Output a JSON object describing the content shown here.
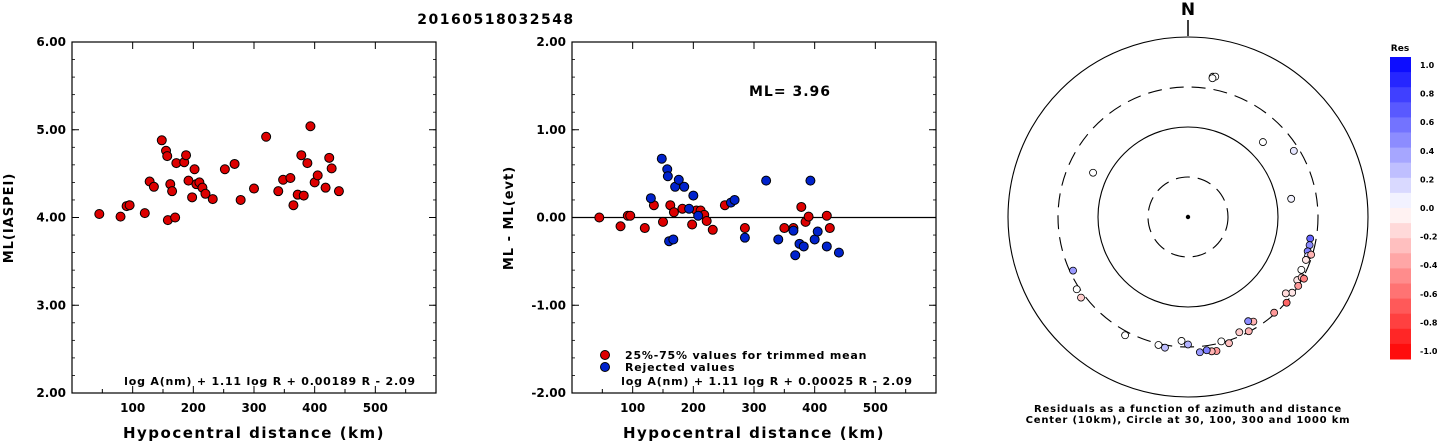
{
  "title": "20160518032548",
  "chart_data": [
    {
      "type": "scatter",
      "xlabel": "Hypocentral distance (km)",
      "ylabel": "ML(IASPEI)",
      "xlim": [
        0,
        600
      ],
      "ylim": [
        2.0,
        6.0
      ],
      "xticks": [
        "100",
        "200",
        "300",
        "400",
        "500"
      ],
      "yticks": [
        "2.00",
        "3.00",
        "4.00",
        "5.00",
        "6.00"
      ],
      "formula": "log A(nm) + 1.11 log R + 0.00189 R - 2.09",
      "series": [
        {
          "color": "#dd0000",
          "points": [
            [
              45,
              4.04
            ],
            [
              80,
              4.01
            ],
            [
              90,
              4.13
            ],
            [
              95,
              4.14
            ],
            [
              120,
              4.05
            ],
            [
              128,
              4.41
            ],
            [
              135,
              4.35
            ],
            [
              148,
              4.88
            ],
            [
              155,
              4.76
            ],
            [
              157,
              4.7
            ],
            [
              158,
              3.97
            ],
            [
              162,
              4.38
            ],
            [
              165,
              4.3
            ],
            [
              170,
              4.0
            ],
            [
              172,
              4.62
            ],
            [
              185,
              4.63
            ],
            [
              188,
              4.71
            ],
            [
              192,
              4.42
            ],
            [
              198,
              4.23
            ],
            [
              202,
              4.55
            ],
            [
              205,
              4.38
            ],
            [
              210,
              4.4
            ],
            [
              215,
              4.34
            ],
            [
              220,
              4.27
            ],
            [
              232,
              4.21
            ],
            [
              252,
              4.55
            ],
            [
              268,
              4.61
            ],
            [
              278,
              4.2
            ],
            [
              300,
              4.33
            ],
            [
              320,
              4.92
            ],
            [
              340,
              4.3
            ],
            [
              348,
              4.43
            ],
            [
              360,
              4.45
            ],
            [
              365,
              4.14
            ],
            [
              372,
              4.26
            ],
            [
              378,
              4.71
            ],
            [
              382,
              4.25
            ],
            [
              388,
              4.62
            ],
            [
              393,
              5.04
            ],
            [
              400,
              4.4
            ],
            [
              405,
              4.48
            ],
            [
              418,
              4.34
            ],
            [
              424,
              4.68
            ],
            [
              428,
              4.56
            ],
            [
              440,
              4.3
            ]
          ]
        }
      ]
    },
    {
      "type": "scatter",
      "xlabel": "Hypocentral distance (km)",
      "ylabel": "ML - ML(evt)",
      "xlim": [
        0,
        600
      ],
      "ylim": [
        -2.0,
        2.0
      ],
      "xticks": [
        "100",
        "200",
        "300",
        "400",
        "500"
      ],
      "yticks": [
        "-2.00",
        "-1.00",
        "0.00",
        "1.00",
        "2.00"
      ],
      "annotation": "ML= 3.96",
      "formula": "log A(nm) + 1.11 log R + 0.00025 R - 2.09",
      "legend": {
        "placement": "bottom-left"
      },
      "series": [
        {
          "name": "25%-75% values for trimmed mean",
          "color": "#dd0000",
          "points": [
            [
              45,
              0.0
            ],
            [
              80,
              -0.1
            ],
            [
              92,
              0.02
            ],
            [
              96,
              0.02
            ],
            [
              120,
              -0.12
            ],
            [
              135,
              0.14
            ],
            [
              150,
              -0.05
            ],
            [
              162,
              0.14
            ],
            [
              168,
              0.06
            ],
            [
              182,
              0.1
            ],
            [
              198,
              -0.08
            ],
            [
              205,
              0.08
            ],
            [
              212,
              0.08
            ],
            [
              218,
              0.03
            ],
            [
              222,
              -0.04
            ],
            [
              232,
              -0.14
            ],
            [
              252,
              0.14
            ],
            [
              285,
              -0.12
            ],
            [
              350,
              -0.12
            ],
            [
              365,
              -0.12
            ],
            [
              378,
              0.12
            ],
            [
              385,
              -0.05
            ],
            [
              390,
              0.01
            ],
            [
              420,
              0.02
            ],
            [
              425,
              -0.12
            ]
          ]
        },
        {
          "name": "Rejected values",
          "color": "#0022cc",
          "points": [
            [
              130,
              0.22
            ],
            [
              148,
              0.67
            ],
            [
              157,
              0.55
            ],
            [
              158,
              0.47
            ],
            [
              160,
              -0.27
            ],
            [
              167,
              -0.25
            ],
            [
              170,
              0.35
            ],
            [
              176,
              0.43
            ],
            [
              185,
              0.35
            ],
            [
              193,
              0.1
            ],
            [
              200,
              0.25
            ],
            [
              208,
              0.02
            ],
            [
              262,
              0.17
            ],
            [
              268,
              0.2
            ],
            [
              285,
              -0.23
            ],
            [
              320,
              0.42
            ],
            [
              340,
              -0.25
            ],
            [
              365,
              -0.15
            ],
            [
              368,
              -0.43
            ],
            [
              375,
              -0.3
            ],
            [
              382,
              -0.33
            ],
            [
              393,
              0.42
            ],
            [
              400,
              -0.25
            ],
            [
              405,
              -0.16
            ],
            [
              420,
              -0.33
            ],
            [
              440,
              -0.4
            ]
          ]
        }
      ]
    },
    {
      "type": "scatter",
      "subtype": "polar",
      "north_label": "N",
      "caption_line1": "Residuals as a function of azimuth and distance",
      "caption_line2": "Center (10km), Circle at 30, 100, 300 and 1000 km",
      "rings_km": [
        30,
        100,
        300,
        1000
      ],
      "colorbar": {
        "title": "Res",
        "range": [
          -1.0,
          1.0
        ],
        "labels": [
          "1.0",
          "0.8",
          "0.6",
          "0.4",
          "0.2",
          "0.0",
          "-0.2",
          "-0.4",
          "-0.6",
          "-0.8",
          "-1.0"
        ]
      },
      "points": [
        {
          "az": 10,
          "dist": 405,
          "res": 0.0
        },
        {
          "az": 11,
          "dist": 410,
          "res": 0.0
        },
        {
          "az": 10,
          "dist": 390,
          "res": 0.0
        },
        {
          "az": 45,
          "dist": 155,
          "res": 0.0
        },
        {
          "az": 295,
          "dist": 150,
          "res": 0.0
        },
        {
          "az": 80,
          "dist": 150,
          "res": 0.05
        },
        {
          "az": 58,
          "dist": 260,
          "res": 0.1
        },
        {
          "az": 100,
          "dist": 255,
          "res": 0.6
        },
        {
          "az": 103,
          "dist": 260,
          "res": 0.45
        },
        {
          "az": 106,
          "dist": 258,
          "res": 0.5
        },
        {
          "az": 108,
          "dist": 270,
          "res": 0.15
        },
        {
          "az": 110,
          "dist": 265,
          "res": -0.1
        },
        {
          "az": 107,
          "dist": 290,
          "res": -0.3
        },
        {
          "az": 115,
          "dist": 262,
          "res": 0.0
        },
        {
          "az": 120,
          "dist": 270,
          "res": -0.1
        },
        {
          "az": 118,
          "dist": 290,
          "res": -0.2
        },
        {
          "az": 122,
          "dist": 300,
          "res": -0.4
        },
        {
          "az": 118,
          "dist": 310,
          "res": -0.5
        },
        {
          "az": 126,
          "dist": 290,
          "res": -0.1
        },
        {
          "az": 128,
          "dist": 255,
          "res": -0.15
        },
        {
          "az": 131,
          "dist": 305,
          "res": -0.6
        },
        {
          "az": 138,
          "dist": 290,
          "res": -0.4
        },
        {
          "az": 148,
          "dist": 250,
          "res": -0.3
        },
        {
          "az": 150,
          "dist": 230,
          "res": 0.45
        },
        {
          "az": 152,
          "dist": 295,
          "res": -0.3
        },
        {
          "az": 156,
          "dist": 270,
          "res": -0.2
        },
        {
          "az": 162,
          "dist": 320,
          "res": -0.25
        },
        {
          "az": 165,
          "dist": 290,
          "res": 0.0
        },
        {
          "az": 168,
          "dist": 355,
          "res": -0.4
        },
        {
          "az": 170,
          "dist": 350,
          "res": -0.3
        },
        {
          "az": 172,
          "dist": 335,
          "res": 0.5
        },
        {
          "az": 175,
          "dist": 345,
          "res": 0.4
        },
        {
          "az": 180,
          "dist": 280,
          "res": 0.3
        },
        {
          "az": 183,
          "dist": 255,
          "res": 0.0
        },
        {
          "az": 190,
          "dist": 320,
          "res": 0.25
        },
        {
          "az": 193,
          "dist": 310,
          "res": 0.0
        },
        {
          "az": 208,
          "dist": 330,
          "res": 0.0
        },
        {
          "az": 233,
          "dist": 330,
          "res": -0.2
        },
        {
          "az": 237,
          "dist": 320,
          "res": 0.0
        },
        {
          "az": 245,
          "dist": 275,
          "res": 0.4
        }
      ]
    }
  ]
}
